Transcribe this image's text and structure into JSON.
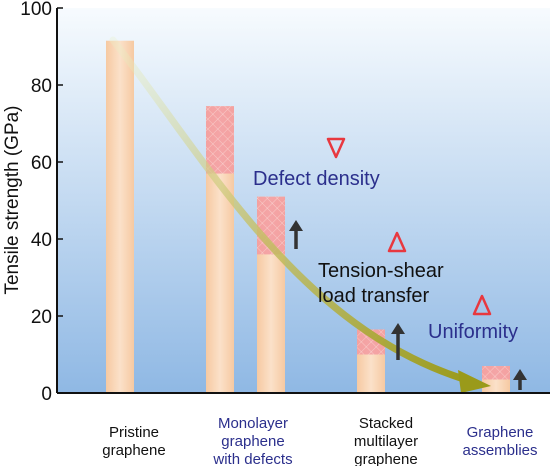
{
  "chart_data": {
    "type": "bar",
    "title": "",
    "xlabel": "",
    "ylabel": "Tensile strength (GPa)",
    "ylim": [
      0,
      100
    ],
    "yticks": [
      0,
      20,
      40,
      60,
      80,
      100
    ],
    "grid": false,
    "categories": [
      {
        "lines": [
          "Pristine",
          "graphene"
        ],
        "color": "#111111"
      },
      {
        "lines": [
          "Monolayer",
          "graphene",
          "with defects"
        ],
        "color": "#2b2f8c"
      },
      {
        "lines": [
          "Stacked",
          "multilayer",
          "graphene"
        ],
        "color": "#111111"
      },
      {
        "lines": [
          "Graphene",
          "assemblies"
        ],
        "color": "#2b2f8c"
      }
    ],
    "bars": [
      {
        "group": 0,
        "value": 91.5,
        "range_low": 91.5
      },
      {
        "group": 1,
        "value": 74.5,
        "range_low": 57
      },
      {
        "group": 1,
        "value": 51,
        "range_low": 36
      },
      {
        "group": 2,
        "value": 16.5,
        "range_low": 10
      },
      {
        "group": 3,
        "value": 7,
        "range_low": 3.5
      }
    ],
    "annotations": [
      {
        "text": "Defect density",
        "color": "#2b2f8c",
        "marker": "down-triangle"
      },
      {
        "text": "Tension-shear",
        "color": "#111111",
        "marker": "up-triangle"
      },
      {
        "text": "load transfer",
        "color": "#111111",
        "marker": "none"
      },
      {
        "text": "Uniformity",
        "color": "#2b2f8c",
        "marker": "up-triangle"
      }
    ],
    "colors": {
      "background_top": "#f7fbfe",
      "background_bottom": "#8fb8e4",
      "bar": "#f6c9a2",
      "bar_highlight": "#fbe1c9",
      "range": "#f39aa0",
      "marker": "#e8383f",
      "arrow": "#333333",
      "trend_arrow": "#9a9a1a"
    }
  }
}
